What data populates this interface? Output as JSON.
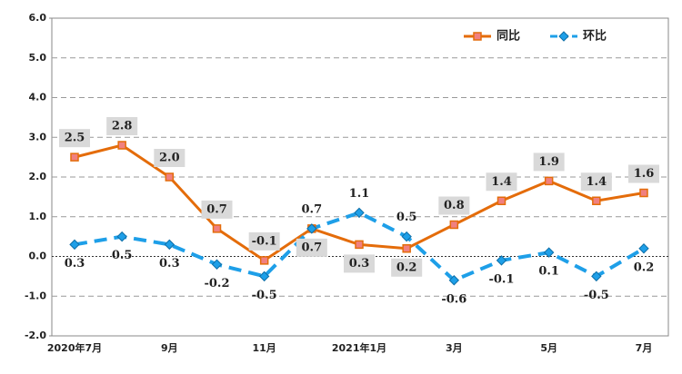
{
  "chart_data": {
    "type": "line",
    "categories": [
      "2020年7月",
      null,
      "9月",
      null,
      "11月",
      null,
      "2021年1月",
      null,
      "3月",
      null,
      "5月",
      null,
      "7月"
    ],
    "series": [
      {
        "name": "同比",
        "color": "#e46c0a",
        "marker_color": "#f08080",
        "values": [
          2.5,
          2.8,
          2.0,
          0.7,
          -0.1,
          0.7,
          0.3,
          0.2,
          0.8,
          1.4,
          1.9,
          1.4,
          1.6
        ],
        "value_labels": [
          "2.5",
          "2.8",
          "2.0",
          "0.7",
          "-0.1",
          "0.7",
          "0.3",
          "0.2",
          "0.8",
          "1.4",
          "1.9",
          "1.4",
          "1.6"
        ]
      },
      {
        "name": "环比",
        "color": "#1e9fe8",
        "marker_color": "#1e9fe8",
        "values": [
          0.3,
          0.5,
          0.3,
          -0.2,
          -0.5,
          0.7,
          1.1,
          0.5,
          -0.6,
          -0.1,
          0.1,
          -0.5,
          0.2
        ],
        "value_labels": [
          "0.3",
          "0.5",
          "0.3",
          "-0.2",
          "-0.5",
          "0.7",
          "1.1",
          "0.5",
          "-0.6",
          "-0.1",
          "0.1",
          "-0.5",
          "0.2"
        ]
      }
    ],
    "ylim": [
      -2,
      6
    ],
    "yticks": [
      {
        "value": -2,
        "label": "-2.0"
      },
      {
        "value": -1,
        "label": "-1.0"
      },
      {
        "value": 0,
        "label": "0.0"
      },
      {
        "value": 1,
        "label": "1.0"
      },
      {
        "value": 2,
        "label": "2.0"
      },
      {
        "value": 3,
        "label": "3.0"
      },
      {
        "value": 4,
        "label": "4.0"
      },
      {
        "value": 5,
        "label": "5.0"
      },
      {
        "value": 6,
        "label": "6.0"
      }
    ],
    "grid": true,
    "legend": "top-right"
  }
}
